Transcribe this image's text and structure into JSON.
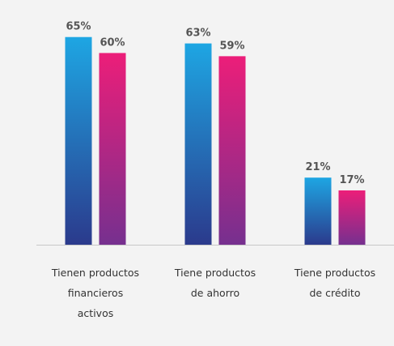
{
  "chart_data": {
    "type": "bar",
    "categories": [
      "Tienen productos financieros activos",
      "Tiene productos de ahorro",
      "Tiene productos de crédito"
    ],
    "series": [
      {
        "color": [
          "#1ea6e3",
          "#2b3a8c"
        ],
        "values": [
          65,
          63,
          21
        ],
        "value_labels": [
          "65%",
          "63%",
          "21%"
        ]
      },
      {
        "color": [
          "#ec1e79",
          "#76308f"
        ],
        "values": [
          60,
          59,
          17
        ],
        "value_labels": [
          "60%",
          "59%",
          "17%"
        ]
      }
    ],
    "ylim": [
      0,
      70
    ]
  }
}
